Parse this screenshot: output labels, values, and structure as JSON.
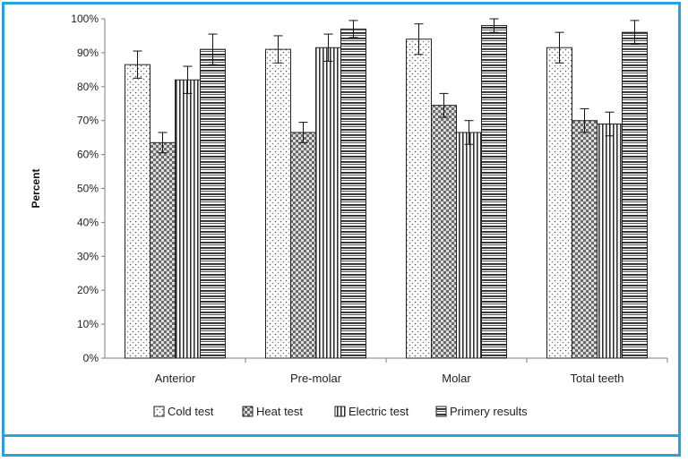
{
  "chart_data": {
    "type": "bar",
    "title": "",
    "xlabel": "",
    "ylabel": "Percent",
    "ylim": [
      0,
      100
    ],
    "yticks": [
      "0%",
      "10%",
      "20%",
      "30%",
      "40%",
      "50%",
      "60%",
      "70%",
      "80%",
      "90%",
      "100%"
    ],
    "categories": [
      "Anterior",
      "Pre-molar",
      "Molar",
      "Total teeth"
    ],
    "series": [
      {
        "name": "Cold test",
        "pattern": "dots",
        "values": [
          86.5,
          91,
          94,
          91.5
        ],
        "errors": [
          4,
          4,
          4.5,
          4.5
        ]
      },
      {
        "name": "Heat test",
        "pattern": "checker",
        "values": [
          63.5,
          66.5,
          74.5,
          70
        ],
        "errors": [
          3,
          3,
          3.5,
          3.5
        ]
      },
      {
        "name": "Electric test",
        "pattern": "vertical",
        "values": [
          82,
          91.5,
          66.5,
          69
        ],
        "errors": [
          4,
          4,
          3.5,
          3.5
        ]
      },
      {
        "name": "Primery results",
        "pattern": "horizontal",
        "values": [
          91,
          97,
          98,
          96
        ],
        "errors": [
          4.5,
          2.5,
          2,
          3.5
        ]
      }
    ],
    "grid": false,
    "legend_position": "bottom"
  }
}
